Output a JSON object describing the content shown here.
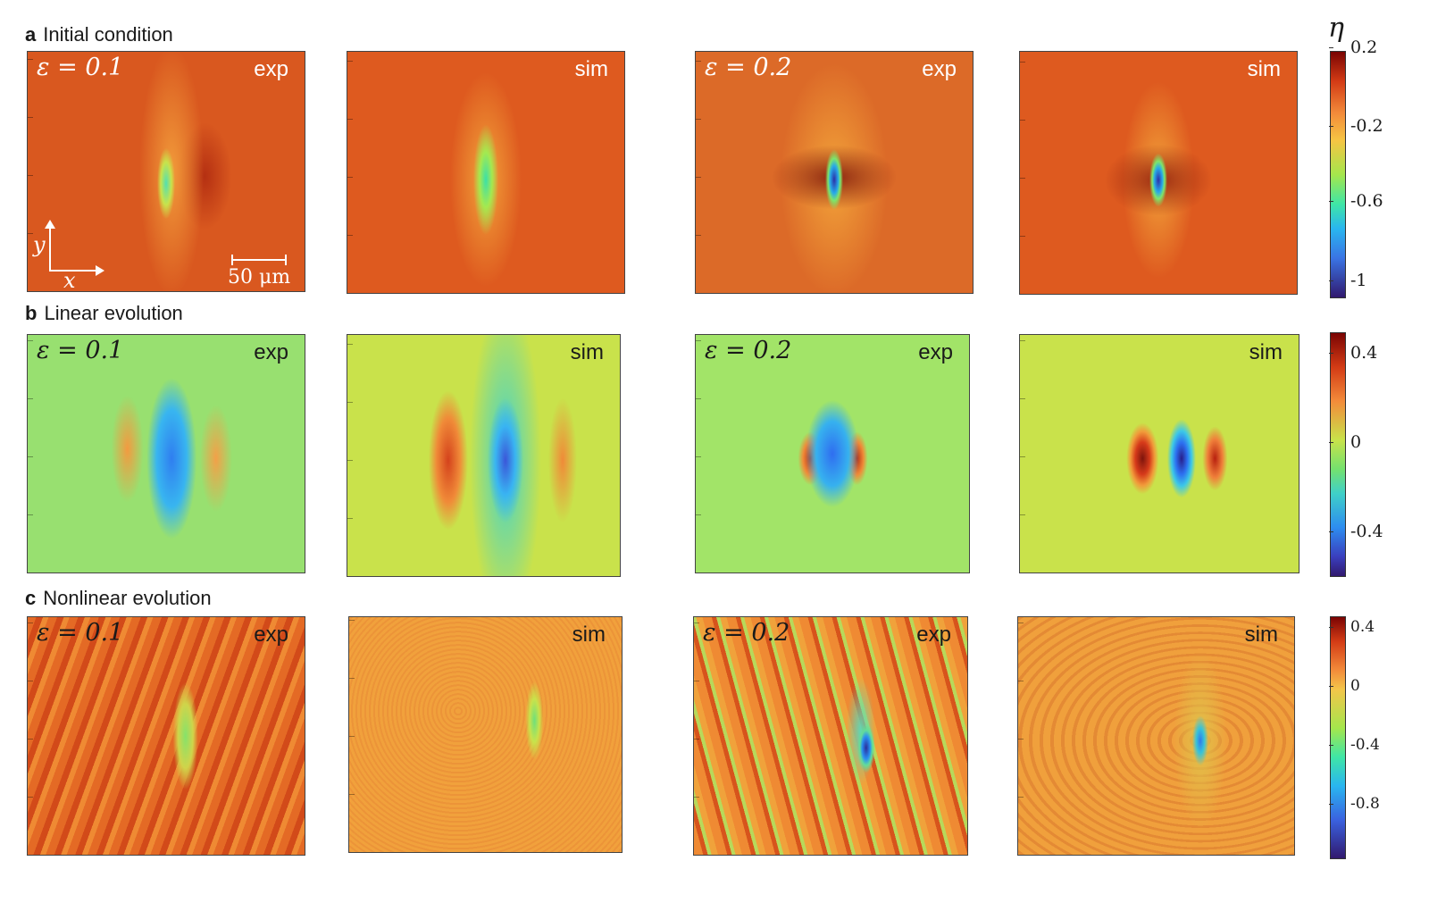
{
  "rows": [
    {
      "letter": "a",
      "title": "Initial condition"
    },
    {
      "letter": "b",
      "title": "Linear evolution"
    },
    {
      "letter": "c",
      "title": "Nonlinear evolution"
    }
  ],
  "panel_tags": {
    "exp": "exp",
    "sim": "sim"
  },
  "epsilon": {
    "low": "0.1",
    "high": "0.2",
    "symbol": "ε",
    "eq": "="
  },
  "scalebar": "50 μm",
  "axes": {
    "x": "x",
    "y": "y"
  },
  "colorbar_title": "η",
  "colorbars": [
    {
      "ticks": [
        "0.2",
        "-0.2",
        "-0.6",
        "-1"
      ]
    },
    {
      "ticks": [
        "0.4",
        "0",
        "-0.4"
      ]
    },
    {
      "ticks": [
        "0.4",
        "0",
        "-0.4",
        "-0.8"
      ]
    }
  ],
  "colors": {
    "hot": "#de5a1f",
    "neutral": "#c9e24b",
    "cold": "#2c2fa8"
  }
}
